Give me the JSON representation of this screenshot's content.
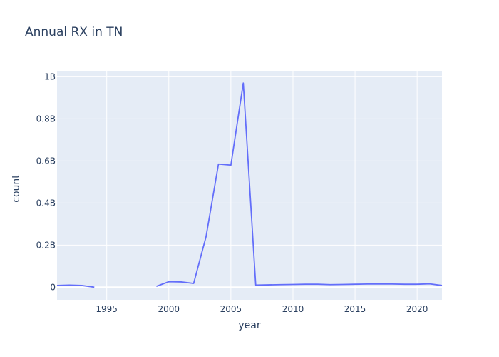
{
  "chart_data": {
    "type": "line",
    "title": "Annual RX in TN",
    "xlabel": "year",
    "ylabel": "count",
    "xlim": [
      1991,
      2022
    ],
    "ylim": [
      -60000000,
      1025000000
    ],
    "x_ticks": [
      {
        "value": 1995,
        "label": "1995"
      },
      {
        "value": 2000,
        "label": "2000"
      },
      {
        "value": 2005,
        "label": "2005"
      },
      {
        "value": 2010,
        "label": "2010"
      },
      {
        "value": 2015,
        "label": "2015"
      },
      {
        "value": 2020,
        "label": "2020"
      }
    ],
    "y_ticks": [
      {
        "value": 0,
        "label": "0"
      },
      {
        "value": 200000000,
        "label": "0.2B"
      },
      {
        "value": 400000000,
        "label": "0.4B"
      },
      {
        "value": 600000000,
        "label": "0.6B"
      },
      {
        "value": 800000000,
        "label": "0.8B"
      },
      {
        "value": 1000000000,
        "label": "1B"
      }
    ],
    "grid": true,
    "background_color": "#e5ecf6",
    "line_color": "#636efa",
    "series": [
      {
        "x": [
          1991,
          1992,
          1993,
          1994,
          1995,
          1996,
          1997,
          1998,
          1999,
          2000,
          2001,
          2002,
          2003,
          2004,
          2005,
          2006,
          2007,
          2008,
          2009,
          2010,
          2011,
          2012,
          2013,
          2014,
          2015,
          2016,
          2017,
          2018,
          2019,
          2020,
          2021,
          2022
        ],
        "y": [
          8000000,
          10000000,
          8000000,
          0,
          null,
          null,
          null,
          null,
          4000000,
          26000000,
          25000000,
          18000000,
          240000000,
          585000000,
          580000000,
          970000000,
          10000000,
          11000000,
          12000000,
          13000000,
          14000000,
          14000000,
          12000000,
          13000000,
          14000000,
          15000000,
          15000000,
          15000000,
          14000000,
          14000000,
          16000000,
          8000000
        ]
      }
    ]
  }
}
